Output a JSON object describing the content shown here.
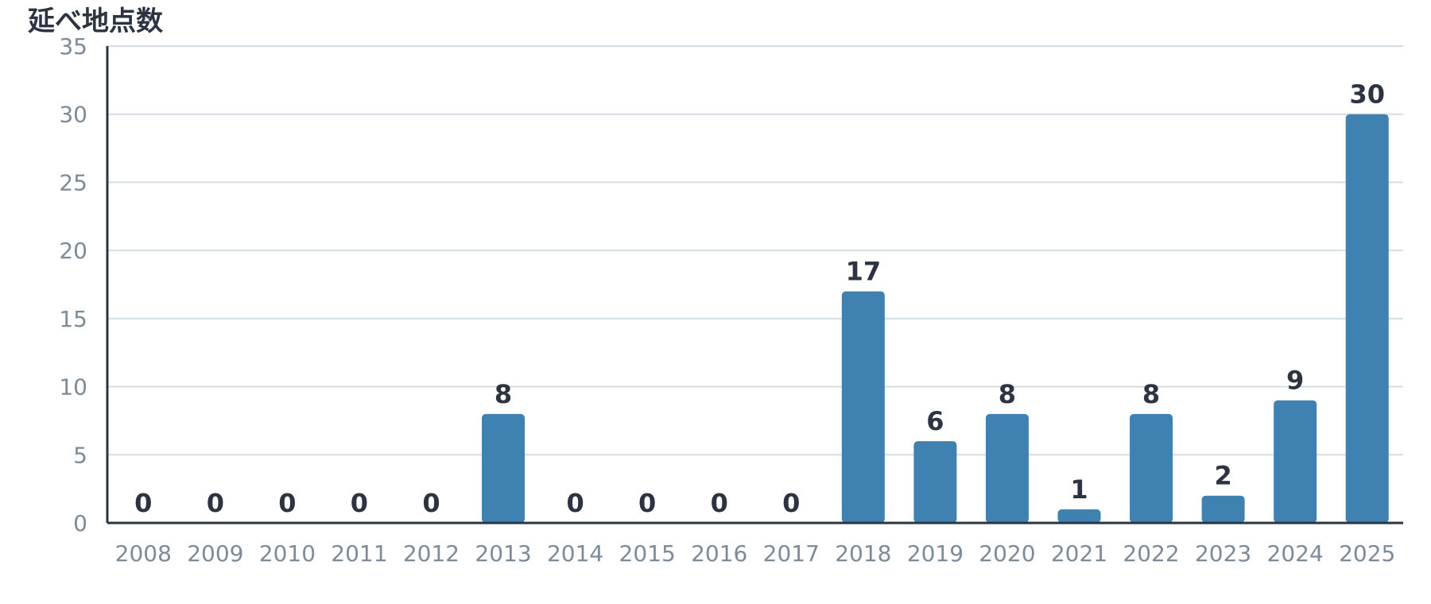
{
  "chart_data": {
    "type": "bar",
    "ylabel": "延べ地点数",
    "xlabel": "",
    "categories": [
      "2008",
      "2009",
      "2010",
      "2011",
      "2012",
      "2013",
      "2014",
      "2015",
      "2016",
      "2017",
      "2018",
      "2019",
      "2020",
      "2021",
      "2022",
      "2023",
      "2024",
      "2025"
    ],
    "values": [
      0,
      0,
      0,
      0,
      0,
      8,
      0,
      0,
      0,
      0,
      17,
      6,
      8,
      1,
      8,
      2,
      9,
      30
    ],
    "ylim": [
      0,
      35
    ],
    "yticks": [
      0,
      5,
      10,
      15,
      20,
      25,
      30,
      35
    ],
    "grid": true,
    "data_labels": true,
    "bar_color": "#3f82b2"
  }
}
